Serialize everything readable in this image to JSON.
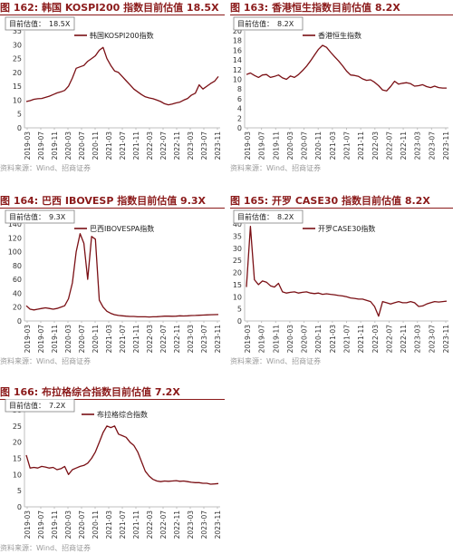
{
  "colors": {
    "title": "#8b1a1a",
    "series": "#7a0f14",
    "axis": "#bfbfbf",
    "label_box": "#7f7f7f"
  },
  "source_text": "资料来源：Wind、招商证券",
  "chart_data": [
    {
      "type": "line",
      "figure_title": "图 162: 韩国 KOSPI200 指数目前估值 18.5X",
      "annotation_label": "目前估值：",
      "annotation_value": "18.5X",
      "series_name": "韩国KOSPI200指数",
      "ylim": [
        0,
        35
      ],
      "yticks": [
        "0",
        "5",
        "10",
        "15",
        "20",
        "25",
        "30",
        "35"
      ],
      "xticks": [
        "2019-03",
        "2019-07",
        "2019-11",
        "2020-03",
        "2020-07",
        "2020-11",
        "2021-03",
        "2021-07",
        "2021-11",
        "2022-03",
        "2022-07",
        "2022-11",
        "2023-03",
        "2023-07",
        "2023-11"
      ],
      "values": [
        9.5,
        9.8,
        10.3,
        10.5,
        10.6,
        11.0,
        11.4,
        12.0,
        12.6,
        13.0,
        13.5,
        15.0,
        18.0,
        21.5,
        22.0,
        22.5,
        24.0,
        25.0,
        26.0,
        28.0,
        29.0,
        25.0,
        22.5,
        20.5,
        20.0,
        18.5,
        17.0,
        15.5,
        14.0,
        13.0,
        12.0,
        11.2,
        10.8,
        10.5,
        10.0,
        9.5,
        8.7,
        8.3,
        8.6,
        9.0,
        9.3,
        10.0,
        10.6,
        11.8,
        12.5,
        15.5,
        14.0,
        15.0,
        16.0,
        16.8,
        18.5
      ]
    },
    {
      "type": "line",
      "figure_title": "图 163: 香港恒生指数目前估值 8.2X",
      "annotation_label": "目前估值：",
      "annotation_value": "8.2X",
      "series_name": "香港恒生指数",
      "ylim": [
        0,
        20
      ],
      "yticks": [
        "0",
        "2",
        "4",
        "6",
        "8",
        "10",
        "12",
        "14",
        "16",
        "18",
        "20"
      ],
      "xticks": [
        "2019-03",
        "2019-07",
        "2019-11",
        "2020-03",
        "2020-07",
        "2020-11",
        "2021-03",
        "2021-07",
        "2021-11",
        "2022-03",
        "2022-07",
        "2022-11",
        "2023-03",
        "2023-07",
        "2023-11"
      ],
      "values": [
        11.0,
        11.3,
        10.8,
        10.4,
        10.9,
        11.0,
        10.4,
        10.6,
        10.9,
        10.3,
        10.0,
        10.7,
        10.4,
        11.0,
        11.8,
        12.7,
        13.8,
        15.0,
        16.2,
        17.0,
        16.6,
        15.6,
        14.7,
        13.8,
        12.8,
        11.7,
        10.9,
        10.8,
        10.6,
        10.1,
        9.8,
        9.9,
        9.4,
        8.7,
        7.8,
        7.6,
        8.5,
        9.6,
        9.0,
        9.2,
        9.3,
        9.1,
        8.6,
        8.7,
        8.9,
        8.5,
        8.3,
        8.6,
        8.3,
        8.2,
        8.2
      ]
    },
    {
      "type": "line",
      "figure_title": "图 164: 巴西 IBOVESP 指数目前估值 9.3X",
      "annotation_label": "目前估值：",
      "annotation_value": "9.3X",
      "series_name": "巴西IBOVESPA指数",
      "ylim": [
        0,
        140
      ],
      "yticks": [
        "0",
        "20",
        "40",
        "60",
        "80",
        "100",
        "120",
        "140"
      ],
      "xticks": [
        "2019-03",
        "2019-07",
        "2019-11",
        "2020-03",
        "2020-07",
        "2020-11",
        "2021-03",
        "2021-07",
        "2021-11",
        "2022-03",
        "2022-07",
        "2022-11",
        "2023-03",
        "2023-07",
        "2023-11"
      ],
      "values": [
        22,
        17,
        16,
        17,
        18,
        19,
        18,
        17,
        18,
        20,
        22,
        32,
        55,
        100,
        126,
        112,
        60,
        122,
        118,
        30,
        20,
        14,
        11,
        9,
        8,
        7.5,
        7,
        6.5,
        6.5,
        6,
        6,
        6,
        5.8,
        6,
        6.2,
        6.5,
        7,
        7,
        6.8,
        7,
        7.5,
        7.2,
        7.5,
        7.8,
        8,
        8.3,
        8.5,
        8.8,
        9,
        9.2,
        9.3
      ]
    },
    {
      "type": "line",
      "figure_title": "图 165: 开罗 CASE30 指数目前估值 8.2X",
      "annotation_label": "目前估值：",
      "annotation_value": "8.2X",
      "series_name": "开罗CASE30指数",
      "ylim": [
        0,
        40
      ],
      "yticks": [
        "0",
        "5",
        "10",
        "15",
        "20",
        "25",
        "30",
        "35",
        "40"
      ],
      "xticks": [
        "2019-03",
        "2019-07",
        "2019-11",
        "2020-03",
        "2020-07",
        "2020-11",
        "2021-03",
        "2021-07",
        "2021-11",
        "2022-03",
        "2022-07",
        "2022-11",
        "2023-03",
        "2023-07",
        "2023-11"
      ],
      "values": [
        14,
        39,
        17,
        15,
        16.5,
        16,
        14.5,
        14,
        15.5,
        12,
        11.5,
        11.8,
        12,
        11.5,
        11.8,
        12,
        11.5,
        11.3,
        11.5,
        11,
        11.2,
        11,
        10.8,
        10.5,
        10.3,
        10,
        9.5,
        9.3,
        9,
        9,
        8.5,
        8,
        6,
        2,
        8,
        7.5,
        7,
        7.5,
        8,
        7.5,
        7.5,
        8,
        7.5,
        6,
        6.2,
        7,
        7.5,
        8,
        7.8,
        8,
        8.2
      ]
    },
    {
      "type": "line",
      "figure_title": "图 166: 布拉格综合指数目前估值 7.2X",
      "annotation_label": "目前估值：",
      "annotation_value": "7.2X",
      "series_name": "布拉格综合指数",
      "ylim": [
        0,
        30
      ],
      "yticks": [
        "0",
        "5",
        "10",
        "15",
        "20",
        "25",
        "30"
      ],
      "xticks": [
        "2019-03",
        "2019-07",
        "2019-11",
        "2020-03",
        "2020-07",
        "2020-11",
        "2021-03",
        "2021-07",
        "2021-11",
        "2022-03",
        "2022-07",
        "2022-11",
        "2023-03",
        "2023-07",
        "2023-11"
      ],
      "values": [
        16,
        12,
        12.2,
        12,
        12.5,
        12.3,
        12,
        12.2,
        11.5,
        11.8,
        12.5,
        10,
        11.5,
        12,
        12.5,
        12.8,
        13.5,
        15,
        17,
        20,
        23,
        25,
        24.5,
        25,
        22.5,
        22,
        21.5,
        20,
        19,
        17,
        14,
        11,
        9.5,
        8.5,
        8,
        7.8,
        8,
        7.9,
        8,
        8.1,
        7.9,
        8,
        7.8,
        7.6,
        7.5,
        7.5,
        7.3,
        7.3,
        7,
        7.1,
        7.2
      ]
    }
  ]
}
